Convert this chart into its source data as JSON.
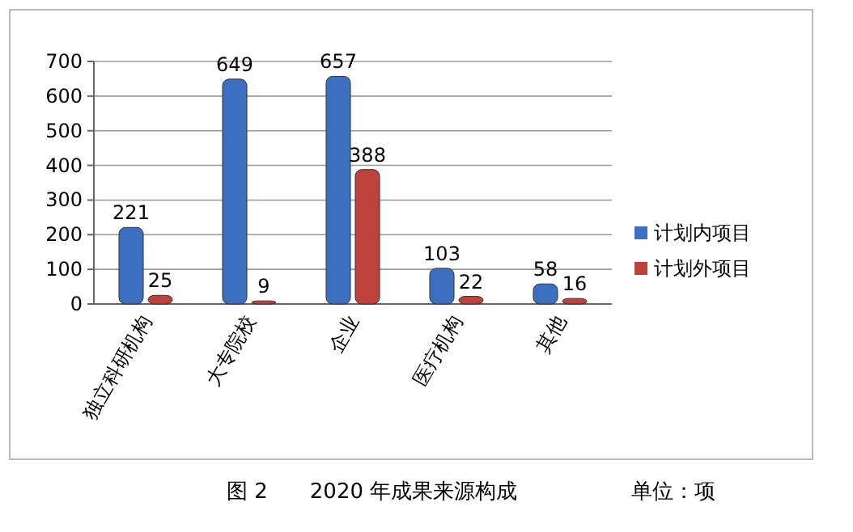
{
  "chart_data": {
    "type": "bar",
    "title": "图 2　　2020 年成果来源构成",
    "annotations": [
      "单位：项"
    ],
    "categories": [
      "独立科研机构",
      "大专院校",
      "企业",
      "医疗机构",
      "其他"
    ],
    "series": [
      {
        "name": "计划内项目",
        "color": "#3c6fc0",
        "values": [
          221,
          649,
          657,
          103,
          58
        ]
      },
      {
        "name": "计划外项目",
        "color": "#c0403c",
        "values": [
          25,
          9,
          388,
          22,
          16
        ]
      }
    ],
    "ylim": [
      0,
      700
    ],
    "yticks": [
      0,
      100,
      200,
      300,
      400,
      500,
      600,
      700
    ],
    "grid": "y",
    "legend": "right",
    "data_labels": true
  }
}
